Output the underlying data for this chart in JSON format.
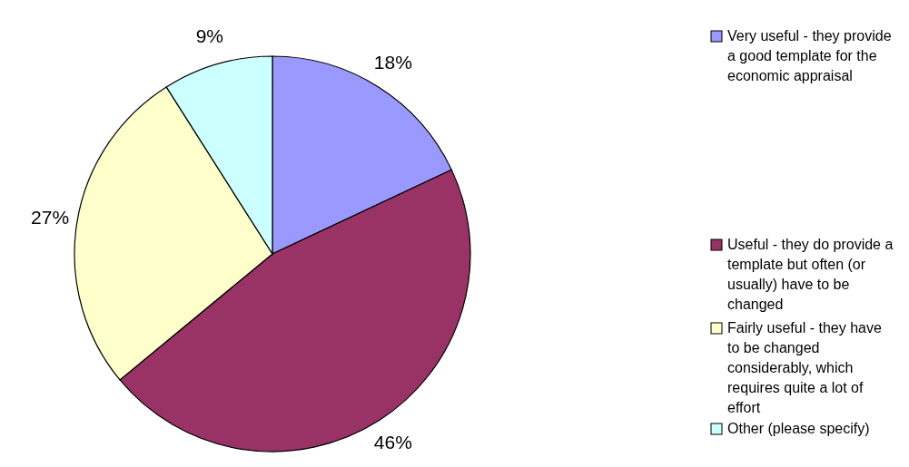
{
  "chart_data": {
    "type": "pie",
    "categories": [
      "Very useful - they provide a good template for the economic appraisal",
      "Useful - they do provide a template but often (or usually) have to be changed",
      "Fairly useful - they have to be changed considerably, which requires quite a lot of effort",
      "Other (please specify)"
    ],
    "values": [
      18,
      46,
      27,
      9
    ],
    "colors": [
      "#9999ff",
      "#993366",
      "#ffffcc",
      "#ccffff"
    ],
    "value_labels": [
      "18%",
      "46%",
      "27%",
      "9%"
    ],
    "legend": "right"
  }
}
